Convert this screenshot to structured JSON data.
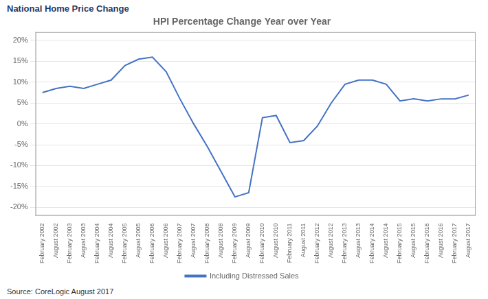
{
  "chart_data": {
    "type": "line",
    "title": "HPI Percentage Change Year over Year",
    "subtitle": "National Home Price Change",
    "source": "Source: CoreLogic August 2017",
    "categories": [
      "February 2002",
      "August 2002",
      "February 2003",
      "August 2003",
      "February 2004",
      "August 2004",
      "February 2005",
      "August 2005",
      "February 2006",
      "August 2006",
      "February 2007",
      "August 2007",
      "February 2008",
      "August 2008",
      "February 2009",
      "August 2009",
      "February 2010",
      "August 2010",
      "February 2011",
      "August 2011",
      "February 2012",
      "August 2012",
      "February 2013",
      "August 2013",
      "February 2014",
      "August 2014",
      "February 2015",
      "August 2015",
      "February 2016",
      "August 2016",
      "February 2017",
      "August 2017"
    ],
    "series": [
      {
        "name": "Including Distressed Sales",
        "color": "#4472C4",
        "values": [
          0.075,
          0.085,
          0.09,
          0.085,
          0.095,
          0.105,
          0.14,
          0.155,
          0.16,
          0.125,
          0.06,
          0.0,
          -0.055,
          -0.115,
          -0.175,
          -0.165,
          0.015,
          0.02,
          -0.045,
          -0.04,
          -0.005,
          0.05,
          0.095,
          0.105,
          0.105,
          0.095,
          0.055,
          0.06,
          0.055,
          0.06,
          0.06,
          0.069
        ]
      }
    ],
    "ylim": [
      -0.22,
      0.22
    ],
    "yticks": [
      {
        "value": -0.2,
        "label": "-20%"
      },
      {
        "value": -0.15,
        "label": "-15%"
      },
      {
        "value": -0.1,
        "label": "-10%"
      },
      {
        "value": -0.05,
        "label": "-5%"
      },
      {
        "value": 0.0,
        "label": "0%"
      },
      {
        "value": 0.05,
        "label": "5%"
      },
      {
        "value": 0.1,
        "label": "10%"
      },
      {
        "value": 0.15,
        "label": "15%"
      },
      {
        "value": 0.2,
        "label": "20%"
      }
    ],
    "grid": "y",
    "legend": "bottom"
  }
}
